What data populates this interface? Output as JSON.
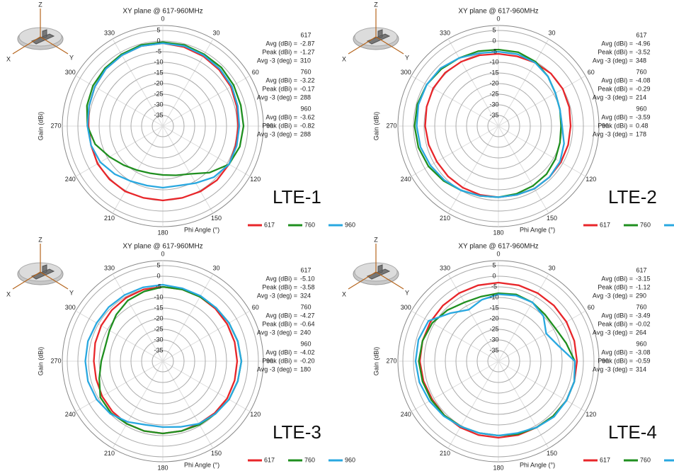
{
  "chart_data": [
    {
      "type": "polar",
      "title": "XY plane @ 617-960MHz",
      "label": "LTE-1",
      "radial_axis_label": "Gain (dBi)",
      "angle_axis_label": "Phi  Angle (°)",
      "icon_labels": [
        "Z",
        "X",
        "Y"
      ],
      "rlim": [
        -40,
        5
      ],
      "rticks": [
        5,
        0,
        -5,
        -10,
        -15,
        -20,
        -25,
        -30,
        -35
      ],
      "thetaticks": [
        0,
        30,
        60,
        90,
        120,
        150,
        180,
        210,
        240,
        270,
        300,
        330
      ],
      "theta": [
        0,
        15,
        30,
        45,
        60,
        75,
        90,
        105,
        120,
        135,
        150,
        165,
        180,
        195,
        210,
        225,
        240,
        255,
        270,
        285,
        300,
        315,
        330,
        345
      ],
      "stat_labels": [
        "Avg (dBi) =",
        "Peak (dBi) =",
        "Avg -3 (deg) ="
      ],
      "series": [
        {
          "name": "617",
          "color": "#e8262a",
          "stats": [
            -2.87,
            -1.27,
            310
          ],
          "values": [
            -1,
            -1.5,
            -2,
            -2.5,
            -3,
            -4,
            -4.5,
            -4.5,
            -4,
            -4,
            -4.5,
            -5,
            -5,
            -5,
            -4.5,
            -4.5,
            -4.5,
            -5,
            -5,
            -4,
            -3,
            -2,
            -1.5,
            -1
          ]
        },
        {
          "name": "760",
          "color": "#1f8f1f",
          "stats": [
            -3.22,
            -0.17,
            288
          ],
          "values": [
            -0.5,
            -0.5,
            -1,
            -1,
            -1.5,
            -2,
            -2,
            -2.5,
            -4,
            -9,
            -14,
            -16,
            -17,
            -17,
            -16,
            -14,
            -11,
            -7,
            -4.5,
            -3,
            -2,
            -1.5,
            -1,
            -0.5
          ]
        },
        {
          "name": "960",
          "color": "#29a8e0",
          "stats": [
            -3.62,
            -0.82,
            288
          ],
          "values": [
            -1,
            -1,
            -1.5,
            -2,
            -2.5,
            -3.5,
            -4,
            -4,
            -4,
            -6,
            -9,
            -11,
            -11,
            -11,
            -10,
            -8,
            -6,
            -5,
            -4.5,
            -4,
            -3,
            -2,
            -1.5,
            -1
          ]
        }
      ]
    },
    {
      "type": "polar",
      "title": "XY plane @ 617-960MHz",
      "label": "LTE-2",
      "radial_axis_label": "Gain (dBi)",
      "angle_axis_label": "Phi  Angle (°)",
      "icon_labels": [
        "Z",
        "X",
        "Y"
      ],
      "rlim": [
        -40,
        5
      ],
      "rticks": [
        5,
        0,
        -5,
        -10,
        -15,
        -20,
        -25,
        -30,
        -35
      ],
      "thetaticks": [
        0,
        30,
        60,
        90,
        120,
        150,
        180,
        210,
        240,
        270,
        300,
        330
      ],
      "theta": [
        0,
        15,
        30,
        45,
        60,
        75,
        90,
        105,
        120,
        135,
        150,
        165,
        180,
        195,
        210,
        225,
        240,
        255,
        270,
        285,
        300,
        315,
        330,
        345
      ],
      "stat_labels": [
        "Avg (dBi) =",
        "Peak (dBi) =",
        "Avg -3 (deg) ="
      ],
      "series": [
        {
          "name": "617",
          "color": "#e8262a",
          "stats": [
            -4.96,
            -3.52,
            348
          ],
          "values": [
            -6,
            -6,
            -5.5,
            -5,
            -5,
            -5.5,
            -6,
            -6,
            -6,
            -6,
            -6,
            -6.5,
            -6.5,
            -6.5,
            -6.5,
            -6.5,
            -6.5,
            -6,
            -5.5,
            -5,
            -4.5,
            -4.5,
            -5,
            -5.5
          ]
        },
        {
          "name": "760",
          "color": "#1f8f1f",
          "stats": [
            -4.08,
            -0.29,
            214
          ],
          "values": [
            -4,
            -4,
            -5,
            -7,
            -9,
            -10,
            -10.5,
            -10,
            -9,
            -8,
            -7.5,
            -7,
            -6.5,
            -6,
            -5,
            -3.5,
            -2,
            -1,
            -0.5,
            -0.5,
            -1,
            -2,
            -3,
            -3.5
          ]
        },
        {
          "name": "960",
          "color": "#29a8e0",
          "stats": [
            -3.59,
            0.48,
            178
          ],
          "values": [
            -5,
            -5,
            -5.5,
            -7,
            -9,
            -10,
            -10,
            -8,
            -6.5,
            -6,
            -6,
            -6.5,
            -6.5,
            -6,
            -5,
            -4,
            -3,
            -2,
            -1.5,
            -1,
            -1,
            -1.5,
            -3,
            -4.5
          ]
        }
      ]
    },
    {
      "type": "polar",
      "title": "XY plane @ 617-960MHz",
      "label": "LTE-3",
      "radial_axis_label": "Gain (dBi)",
      "angle_axis_label": "Phi  Angle (°)",
      "icon_labels": [
        "Z",
        "X",
        "Y"
      ],
      "rlim": [
        -40,
        5
      ],
      "rticks": [
        5,
        0,
        -5,
        -10,
        -15,
        -20,
        -25,
        -30,
        -35
      ],
      "thetaticks": [
        0,
        30,
        60,
        90,
        120,
        150,
        180,
        210,
        240,
        270,
        300,
        330
      ],
      "theta": [
        0,
        15,
        30,
        45,
        60,
        75,
        90,
        105,
        120,
        135,
        150,
        165,
        180,
        195,
        210,
        225,
        240,
        255,
        270,
        285,
        300,
        315,
        330,
        345
      ],
      "stat_labels": [
        "Avg (dBi) =",
        "Peak (dBi) =",
        "Avg -3 (deg) ="
      ],
      "series": [
        {
          "name": "617",
          "color": "#e8262a",
          "stats": [
            {
              "value": -5.1,
              "label": "-5.10"
            },
            -3.58,
            324
          ],
          "values": [
            -5,
            -5,
            -5,
            -5,
            -5,
            -5,
            -5,
            -5,
            -5,
            -5.5,
            -6,
            -6,
            -6,
            -6,
            -6,
            -6.5,
            -7,
            -7.5,
            -7.5,
            -7,
            -6.5,
            -6,
            -5.5,
            -5
          ]
        },
        {
          "name": "760",
          "color": "#1f8f1f",
          "stats": [
            -4.27,
            -0.64,
            240
          ],
          "values": [
            -5,
            -5,
            -5,
            -4.5,
            -4,
            -3.5,
            -3,
            -3.5,
            -4,
            -5,
            -5.5,
            -6,
            -6,
            -6,
            -6,
            -5.5,
            -6,
            -9,
            -11,
            -12,
            -11,
            -9,
            -7,
            -6
          ]
        },
        {
          "name": "960",
          "color": "#29a8e0",
          "stats": [
            -4.02,
            {
              "value": -0.2,
              "label": "-0.20"
            },
            180
          ],
          "values": [
            -4,
            -4.5,
            -4.5,
            -4.5,
            -4,
            -3.5,
            -3,
            -3.5,
            -4,
            -5,
            -6,
            -8,
            -9,
            -9,
            -7,
            -5,
            -4,
            -3.5,
            -3.5,
            -3.5,
            -4,
            -4,
            -4,
            -4
          ]
        }
      ]
    },
    {
      "type": "polar",
      "title": "XY plane @ 617-960MHz",
      "label": "LTE-4",
      "radial_axis_label": "Gain (dBi)",
      "angle_axis_label": "Phi  Angle (°)",
      "icon_labels": [
        "Z",
        "X",
        "Y"
      ],
      "rlim": [
        -40,
        5
      ],
      "rticks": [
        5,
        0,
        -5,
        -10,
        -15,
        -20,
        -25,
        -30,
        -35
      ],
      "thetaticks": [
        0,
        30,
        60,
        90,
        120,
        150,
        180,
        210,
        240,
        270,
        300,
        330
      ],
      "theta": [
        0,
        15,
        30,
        45,
        60,
        75,
        90,
        105,
        120,
        135,
        150,
        165,
        180,
        195,
        210,
        225,
        240,
        255,
        270,
        285,
        300,
        315,
        330,
        345
      ],
      "stat_labels": [
        "Avg (dBi) =",
        "Peak (dBi) =",
        "Avg -3 (deg) ="
      ],
      "series": [
        {
          "name": "617",
          "color": "#e8262a",
          "stats": [
            -3.15,
            -1.12,
            290
          ],
          "values": [
            -3,
            -3,
            -3,
            -3,
            -3,
            -3,
            -3,
            -3,
            -3,
            -3.5,
            -4,
            -4,
            -4,
            -4,
            -4,
            -4,
            -4,
            -3.5,
            -3,
            -3,
            -3,
            -3,
            -3,
            -3
          ]
        },
        {
          "name": "760",
          "color": "#1f8f1f",
          "stats": [
            -3.49,
            -0.02,
            264
          ],
          "values": [
            -8,
            -7.5,
            -8,
            -9,
            -9,
            -7,
            -4,
            -3,
            -3,
            -3.5,
            -4,
            -4.5,
            -5,
            -5,
            -4.5,
            -4,
            -3.5,
            -3,
            -2.5,
            -3,
            -4,
            -6,
            -8,
            -8.5
          ]
        },
        {
          "name": "960",
          "color": "#29a8e0",
          "stats": [
            -3.08,
            -0.59,
            314
          ],
          "values": [
            -8.5,
            -8,
            -8,
            -10,
            -14,
            -11,
            -4,
            -3,
            -3,
            -3,
            -4,
            -5,
            -5,
            -5,
            -4.5,
            -3.5,
            -2.5,
            -1.5,
            -1,
            -1,
            -2,
            -8,
            -12,
            -10
          ]
        }
      ]
    }
  ]
}
